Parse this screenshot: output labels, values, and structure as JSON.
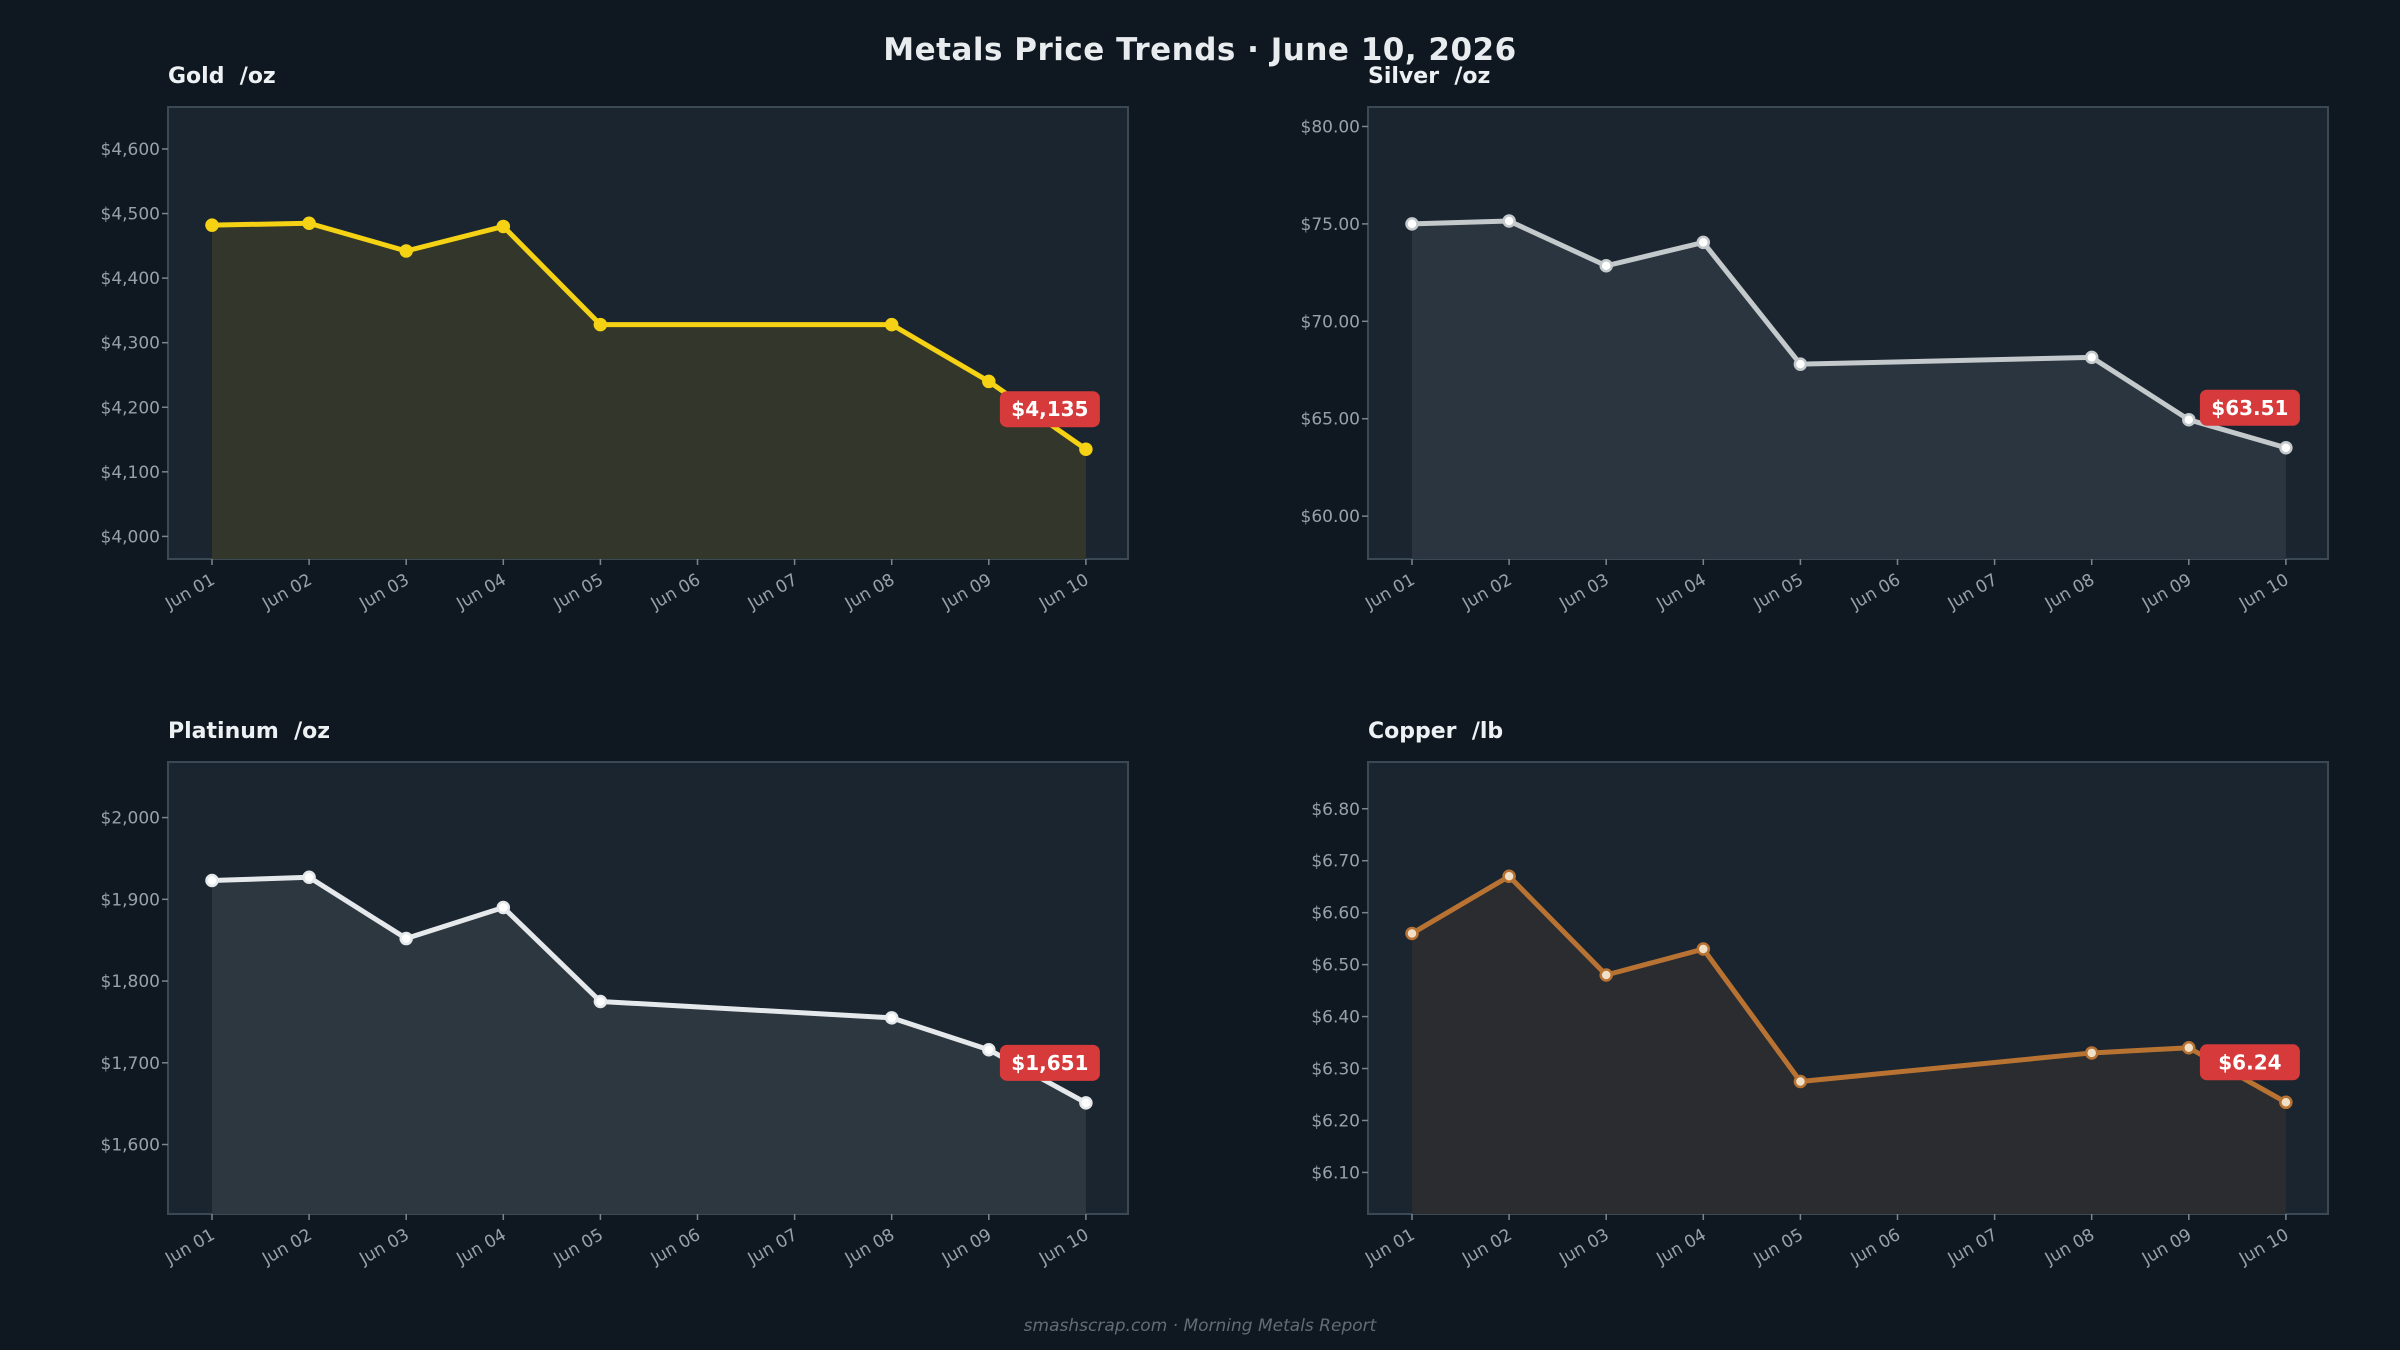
{
  "title": "Metals Price Trends  ·  June 10, 2026",
  "footer": "smashscrap.com  ·  Morning Metals Report",
  "colors": {
    "background": "#0f1821",
    "plot_background": "#1b2530",
    "badge": "#d63a3a"
  },
  "chart_data": [
    {
      "type": "area",
      "title": "Gold  /oz",
      "color": "#f5d214",
      "fill": "#33362a",
      "marker_fill": "#f5d214",
      "x": [
        "Jun 01",
        "Jun 02",
        "Jun 03",
        "Jun 04",
        "Jun 05",
        "Jun 08",
        "Jun 09",
        "Jun 10"
      ],
      "categories": [
        "Jun 01",
        "Jun 02",
        "Jun 03",
        "Jun 04",
        "Jun 05",
        "Jun 06",
        "Jun 07",
        "Jun 08",
        "Jun 09",
        "Jun 10"
      ],
      "values": [
        4482,
        4485,
        4442,
        4480,
        4328,
        4328,
        4240,
        4135
      ],
      "yticks": [
        4000,
        4100,
        4200,
        4300,
        4400,
        4500,
        4600
      ],
      "ytick_labels": [
        "$4,000",
        "$4,100",
        "$4,200",
        "$4,300",
        "$4,400",
        "$4,500",
        "$4,600"
      ],
      "ylim": [
        3965,
        4665
      ],
      "latest_label": "$4,135",
      "grid": false
    },
    {
      "type": "area",
      "title": "Silver  /oz",
      "color": "#c4c9cc",
      "fill": "#2a353f",
      "marker_fill": "#ffffff",
      "x": [
        "Jun 01",
        "Jun 02",
        "Jun 03",
        "Jun 04",
        "Jun 05",
        "Jun 08",
        "Jun 09",
        "Jun 10"
      ],
      "categories": [
        "Jun 01",
        "Jun 02",
        "Jun 03",
        "Jun 04",
        "Jun 05",
        "Jun 06",
        "Jun 07",
        "Jun 08",
        "Jun 09",
        "Jun 10"
      ],
      "values": [
        75.0,
        75.15,
        72.85,
        74.05,
        67.8,
        68.15,
        64.95,
        63.51
      ],
      "yticks": [
        60,
        65,
        70,
        75,
        80
      ],
      "ytick_labels": [
        "$60.00",
        "$65.00",
        "$70.00",
        "$75.00",
        "$80.00"
      ],
      "ylim": [
        57.8,
        81.0
      ],
      "latest_label": "$63.51",
      "grid": false
    },
    {
      "type": "area",
      "title": "Platinum  /oz",
      "color": "#e6e9ec",
      "fill": "#2d3740",
      "marker_fill": "#ffffff",
      "x": [
        "Jun 01",
        "Jun 02",
        "Jun 03",
        "Jun 04",
        "Jun 05",
        "Jun 08",
        "Jun 09",
        "Jun 10"
      ],
      "categories": [
        "Jun 01",
        "Jun 02",
        "Jun 03",
        "Jun 04",
        "Jun 05",
        "Jun 06",
        "Jun 07",
        "Jun 08",
        "Jun 09",
        "Jun 10"
      ],
      "values": [
        1923,
        1927,
        1852,
        1890,
        1775,
        1755,
        1716,
        1651
      ],
      "yticks": [
        1600,
        1700,
        1800,
        1900,
        2000
      ],
      "ytick_labels": [
        "$1,600",
        "$1,700",
        "$1,800",
        "$1,900",
        "$2,000"
      ],
      "ylim": [
        1515,
        2068
      ],
      "latest_label": "$1,651",
      "grid": false
    },
    {
      "type": "area",
      "title": "Copper  /lb",
      "color": "#b87333",
      "fill": "#2a2c2f",
      "marker_fill": "#f0e0c8",
      "x": [
        "Jun 01",
        "Jun 02",
        "Jun 03",
        "Jun 04",
        "Jun 05",
        "Jun 08",
        "Jun 09",
        "Jun 10"
      ],
      "categories": [
        "Jun 01",
        "Jun 02",
        "Jun 03",
        "Jun 04",
        "Jun 05",
        "Jun 06",
        "Jun 07",
        "Jun 08",
        "Jun 09",
        "Jun 10"
      ],
      "values": [
        6.56,
        6.67,
        6.48,
        6.53,
        6.275,
        6.33,
        6.34,
        6.235
      ],
      "yticks": [
        6.1,
        6.2,
        6.3,
        6.4,
        6.5,
        6.6,
        6.7,
        6.8
      ],
      "ytick_labels": [
        "$6.10",
        "$6.20",
        "$6.30",
        "$6.40",
        "$6.50",
        "$6.60",
        "$6.70",
        "$6.80"
      ],
      "ylim": [
        6.02,
        6.89
      ],
      "latest_label": "$6.24",
      "grid": false
    }
  ]
}
